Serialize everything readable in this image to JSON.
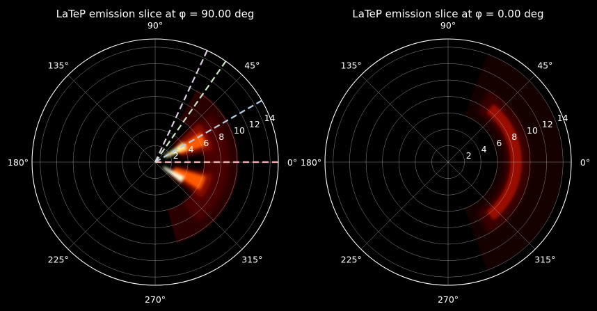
{
  "chart_data": [
    {
      "type": "polar-heatmap",
      "title": "LaTeP emission slice at φ = 90.00 deg",
      "theta_ticks": [
        "0°",
        "45°",
        "90°",
        "135°",
        "180°",
        "225°",
        "270°",
        "315°"
      ],
      "r_ticks": [
        "2",
        "4",
        "6",
        "8",
        "10",
        "12",
        "14"
      ],
      "rlim": [
        0,
        15
      ],
      "grid": true,
      "colormap": "hot",
      "background": "#000000",
      "emission": {
        "inner_arc_radius": 1.6,
        "inner_arc_theta_deg": [
          -22,
          22
        ],
        "peak_radius": 6.0,
        "outer_edge_radius": 10.2,
        "outer_edge_theta_deg": [
          -75,
          60
        ]
      },
      "guide_lines": [
        {
          "theta_deg": 0,
          "color": "#f4b6b6"
        },
        {
          "theta_deg": 30,
          "color": "#b3cde3"
        },
        {
          "theta_deg": 55,
          "color": "#ccebc5"
        },
        {
          "theta_deg": 65,
          "color": "#decbe4"
        }
      ]
    },
    {
      "type": "polar-heatmap",
      "title": "LaTeP emission slice at φ = 0.00 deg",
      "theta_ticks": [
        "0°",
        "45°",
        "90°",
        "135°",
        "180°",
        "225°",
        "270°",
        "315°"
      ],
      "r_ticks": [
        "2",
        "4",
        "6",
        "8",
        "10",
        "12",
        "14"
      ],
      "rlim": [
        0,
        15
      ],
      "grid": true,
      "colormap": "hot",
      "background": "#000000",
      "emission": {
        "shell_radius_range": [
          6.0,
          10.0
        ],
        "theta_deg": [
          -60,
          60
        ],
        "faint_halo_radius": 14
      },
      "guide_lines": []
    }
  ]
}
